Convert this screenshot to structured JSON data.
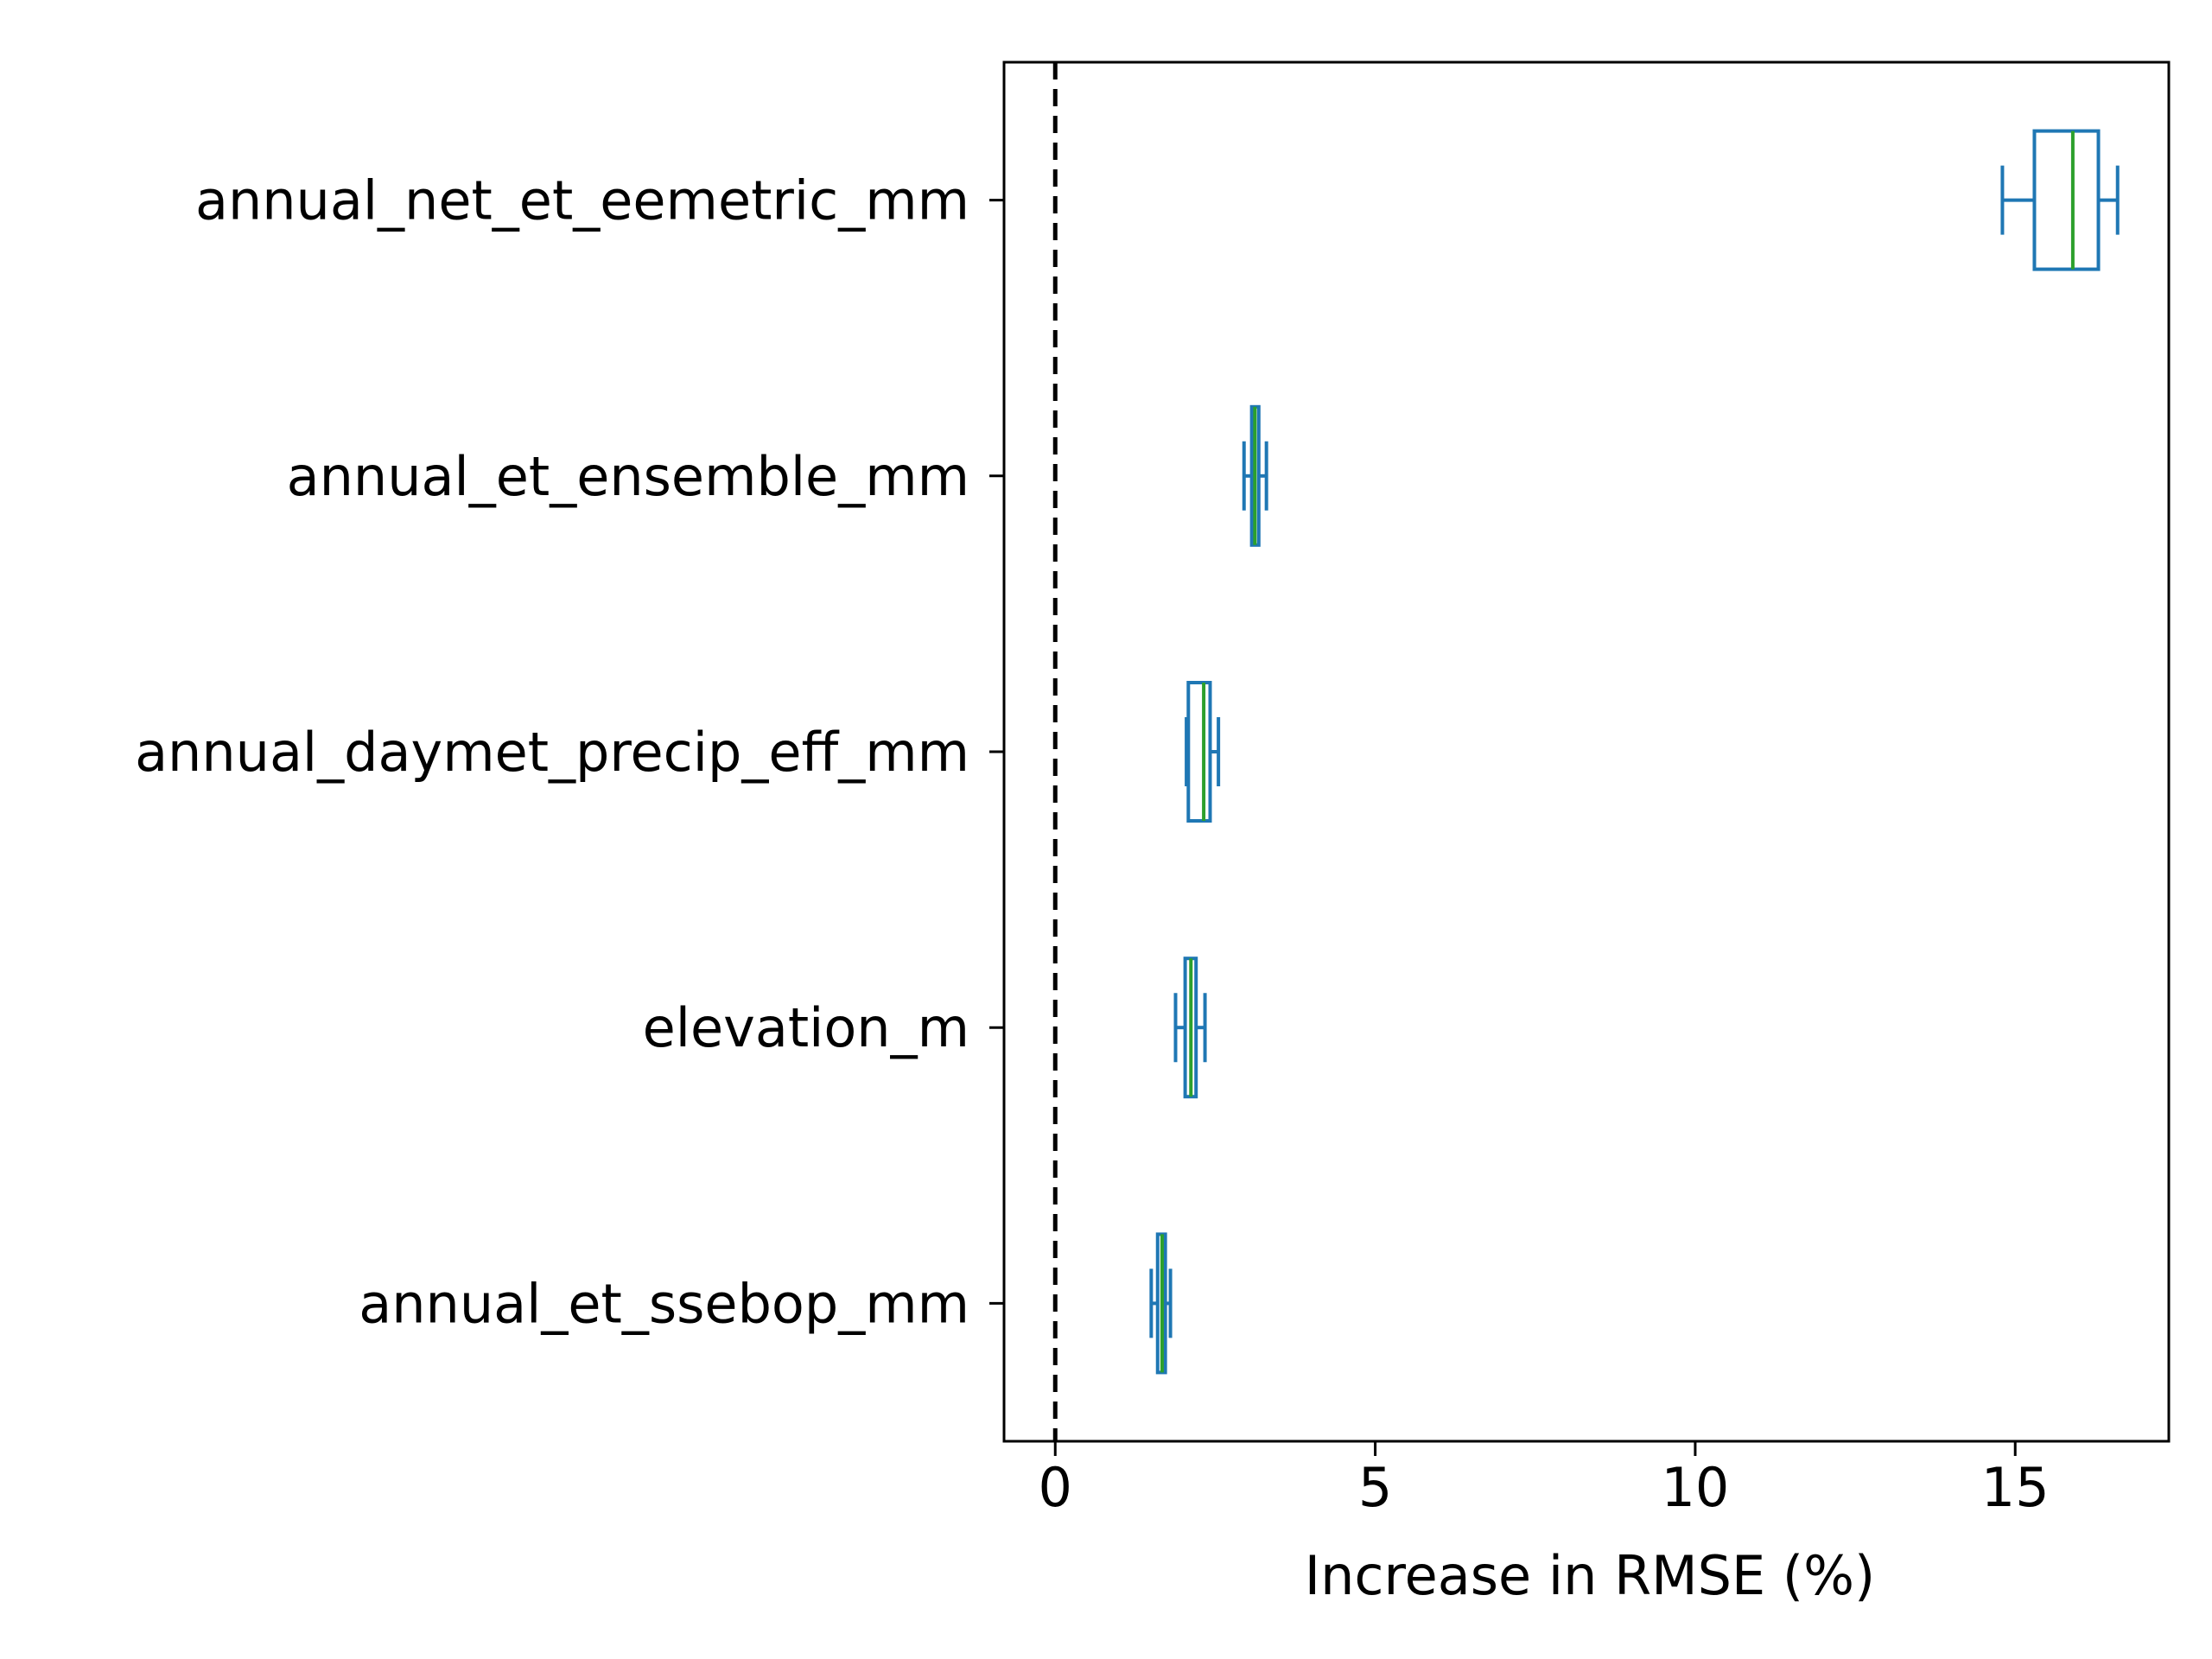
{
  "chart_data": {
    "type": "boxplot",
    "orientation": "horizontal",
    "title": "",
    "xlabel": "Increase in RMSE (%)",
    "ylabel": "",
    "xlim": [
      -0.8,
      17.4
    ],
    "xticks": [
      0,
      5,
      10,
      15
    ],
    "grid": false,
    "reference_line": {
      "x": 0,
      "style": "dashed",
      "color": "#000000"
    },
    "colors": {
      "box": "#1f77b4",
      "median": "#2ca02c"
    },
    "categories": [
      "annual_net_et_eemetric_mm",
      "annual_et_ensemble_mm",
      "annual_daymet_precip_eff_mm",
      "elevation_m",
      "annual_et_ssebop_mm"
    ],
    "boxes": [
      {
        "label": "annual_net_et_eemetric_mm",
        "whislo": 14.8,
        "q1": 15.3,
        "med": 15.9,
        "q3": 16.3,
        "whishi": 16.6
      },
      {
        "label": "annual_et_ensemble_mm",
        "whislo": 2.95,
        "q1": 3.07,
        "med": 3.12,
        "q3": 3.18,
        "whishi": 3.3
      },
      {
        "label": "annual_daymet_precip_eff_mm",
        "whislo": 2.05,
        "q1": 2.08,
        "med": 2.32,
        "q3": 2.42,
        "whishi": 2.55
      },
      {
        "label": "elevation_m",
        "whislo": 1.88,
        "q1": 2.03,
        "med": 2.12,
        "q3": 2.2,
        "whishi": 2.34
      },
      {
        "label": "annual_et_ssebop_mm",
        "whislo": 1.5,
        "q1": 1.6,
        "med": 1.67,
        "q3": 1.72,
        "whishi": 1.8
      }
    ]
  }
}
